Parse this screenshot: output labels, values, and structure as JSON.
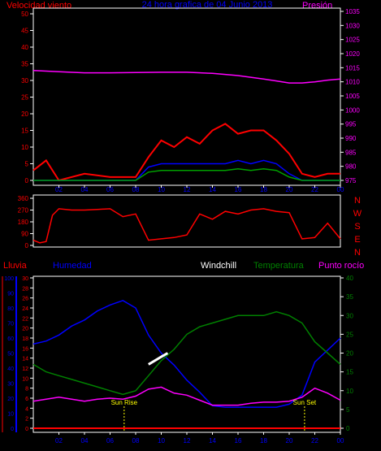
{
  "chart_data": [
    {
      "type": "line",
      "title": "24 hora grafica de 04 Junio 2013",
      "left_label": "Velocidad viento",
      "right_label": "Presión",
      "x_ticks": [
        "02",
        "04",
        "06",
        "08",
        "10",
        "12",
        "14",
        "16",
        "18",
        "20",
        "22",
        "00"
      ],
      "x_range_hours": [
        0,
        24
      ],
      "left_ticks": [
        "0",
        "5",
        "10",
        "15",
        "20",
        "25",
        "30",
        "35",
        "40",
        "45",
        "50"
      ],
      "left_range": [
        0,
        50
      ],
      "right_ticks": [
        "975",
        "980",
        "985",
        "990",
        "995",
        "1000",
        "1005",
        "1010",
        "1015",
        "1020",
        "1025",
        "1030",
        "1035"
      ],
      "right_range": [
        975,
        1035
      ],
      "grid": false,
      "colors": {
        "gust": "#ff0000",
        "average": "#0000ff",
        "speed": "#00a000",
        "pressure": "#ff00ff"
      },
      "series": [
        {
          "name": "Presión",
          "axis": "right",
          "color": "#ff00ff",
          "x": [
            0,
            2,
            4,
            6,
            8,
            10,
            12,
            14,
            16,
            18,
            19,
            20,
            21,
            22,
            23,
            24
          ],
          "y": [
            1014.0,
            1013.6,
            1013.2,
            1013.2,
            1013.3,
            1013.4,
            1013.4,
            1013.0,
            1012.2,
            1011.0,
            1010.3,
            1009.6,
            1009.6,
            1010.0,
            1010.6,
            1011.0
          ]
        },
        {
          "name": "gust",
          "axis": "left",
          "color": "#ff0000",
          "x": [
            0,
            1,
            2,
            4,
            6,
            8,
            9,
            10,
            11,
            12,
            13,
            14,
            15,
            16,
            17,
            18,
            19,
            20,
            21,
            22,
            23,
            24
          ],
          "y": [
            3,
            6,
            0,
            2,
            1,
            1,
            7,
            12,
            10,
            13,
            11,
            15,
            17,
            14,
            15,
            15,
            12,
            8,
            2,
            1,
            2,
            2
          ]
        },
        {
          "name": "average",
          "axis": "left",
          "color": "#0000ff",
          "x": [
            0,
            8,
            9,
            10,
            11,
            12,
            13,
            14,
            15,
            16,
            17,
            18,
            19,
            20,
            21,
            24
          ],
          "y": [
            0,
            0,
            4,
            5,
            5,
            5,
            5,
            5,
            5,
            6,
            5,
            6,
            5,
            2,
            0,
            0
          ]
        },
        {
          "name": "speed",
          "axis": "left",
          "color": "#00a000",
          "x": [
            0,
            8,
            9,
            10,
            11,
            12,
            13,
            14,
            15,
            16,
            17,
            18,
            19,
            20,
            21,
            24
          ],
          "y": [
            0,
            0,
            2.5,
            3,
            3,
            3,
            3,
            3,
            3,
            3.5,
            3,
            3.5,
            3,
            1,
            0,
            0
          ]
        }
      ]
    },
    {
      "type": "line",
      "left_ticks": [
        "0",
        "90",
        "180",
        "270",
        "360"
      ],
      "left_range": [
        0,
        360
      ],
      "right_labels": [
        "N",
        "W",
        "S",
        "E",
        "N"
      ],
      "x_range_hours": [
        0,
        24
      ],
      "series": [
        {
          "name": "direction",
          "color": "#ff0000",
          "x": [
            0,
            0.5,
            1,
            1.5,
            2,
            3,
            4,
            5,
            6,
            7,
            8,
            9,
            10,
            11,
            12,
            13,
            14,
            15,
            16,
            17,
            18,
            19,
            20,
            21,
            22,
            23,
            24
          ],
          "y": [
            40,
            20,
            30,
            230,
            280,
            270,
            270,
            275,
            280,
            220,
            240,
            40,
            50,
            60,
            80,
            240,
            200,
            260,
            240,
            270,
            280,
            260,
            250,
            50,
            60,
            170,
            50
          ]
        }
      ]
    },
    {
      "type": "line",
      "labels": {
        "rain": "Lluvia",
        "humidity": "Humedad",
        "windchill": "Windchill",
        "temperature": "Temperatura",
        "dewpoint": "Punto rocío"
      },
      "x_ticks": [
        "02",
        "04",
        "06",
        "08",
        "10",
        "12",
        "14",
        "16",
        "18",
        "20",
        "22",
        "00"
      ],
      "x_range_hours": [
        0,
        24
      ],
      "outer_left_ticks": [
        "0",
        "10",
        "20",
        "30",
        "40",
        "50",
        "60",
        "70",
        "80",
        "90",
        "100"
      ],
      "outer_left_range": [
        0,
        100
      ],
      "inner_left_ticks": [
        "0",
        "2",
        "4",
        "6",
        "8",
        "10",
        "12",
        "14",
        "16",
        "18",
        "20",
        "22",
        "24",
        "26",
        "28",
        "30"
      ],
      "inner_left_range": [
        0,
        30
      ],
      "right_ticks": [
        "0",
        "5",
        "10",
        "15",
        "20",
        "25",
        "30",
        "35",
        "40"
      ],
      "right_range": [
        0,
        40
      ],
      "annotations": [
        {
          "text": "Sun Rise",
          "hour": 7.1
        },
        {
          "text": "Sun Set",
          "hour": 21.2
        }
      ],
      "series": [
        {
          "name": "Humedad",
          "axis": "outer-left",
          "color": "#0000ff",
          "x": [
            0,
            1,
            2,
            3,
            4,
            5,
            6,
            7,
            8,
            9,
            10,
            11,
            12,
            13,
            14,
            15,
            16,
            17,
            18,
            19,
            20,
            21,
            22,
            23,
            24
          ],
          "y": [
            56,
            58,
            62,
            68,
            72,
            78,
            82,
            85,
            80,
            62,
            50,
            42,
            32,
            24,
            15,
            14,
            14,
            14,
            14,
            14,
            16,
            22,
            44,
            52,
            60
          ]
        },
        {
          "name": "Temperatura",
          "axis": "right",
          "color": "#008000",
          "x": [
            0,
            1,
            2,
            3,
            4,
            5,
            6,
            7,
            8,
            9,
            10,
            11,
            12,
            13,
            14,
            15,
            16,
            17,
            18,
            19,
            20,
            21,
            22,
            23,
            24
          ],
          "y": [
            17,
            15,
            14,
            13,
            12,
            11,
            10,
            9,
            10,
            14,
            18,
            21,
            25,
            27,
            28,
            29,
            30,
            30,
            30,
            31,
            30,
            28,
            23,
            20,
            17
          ]
        },
        {
          "name": "Windchill",
          "axis": "right",
          "color": "#ffffff",
          "x": [
            9.0,
            9.5,
            10.0,
            10.5
          ],
          "y": [
            17,
            18,
            19,
            20
          ]
        },
        {
          "name": "Punto rocío",
          "axis": "inner-left",
          "color": "#ff00ff",
          "x": [
            0,
            1,
            2,
            3,
            4,
            5,
            6,
            7,
            8,
            9,
            10,
            11,
            12,
            13,
            14,
            15,
            16,
            17,
            18,
            19,
            20,
            21,
            22,
            23,
            24
          ],
          "y": [
            5.4,
            5.8,
            6.2,
            5.8,
            5.4,
            5.8,
            6.0,
            5.8,
            6.4,
            7.8,
            8.2,
            7.0,
            6.6,
            5.6,
            4.6,
            4.6,
            4.6,
            5.0,
            5.2,
            5.2,
            5.4,
            6.2,
            8.0,
            7.0,
            5.6
          ]
        },
        {
          "name": "Lluvia",
          "axis": "outer-left",
          "color": "#ff0000",
          "x": [
            0,
            24
          ],
          "y": [
            0,
            0
          ]
        }
      ]
    }
  ]
}
